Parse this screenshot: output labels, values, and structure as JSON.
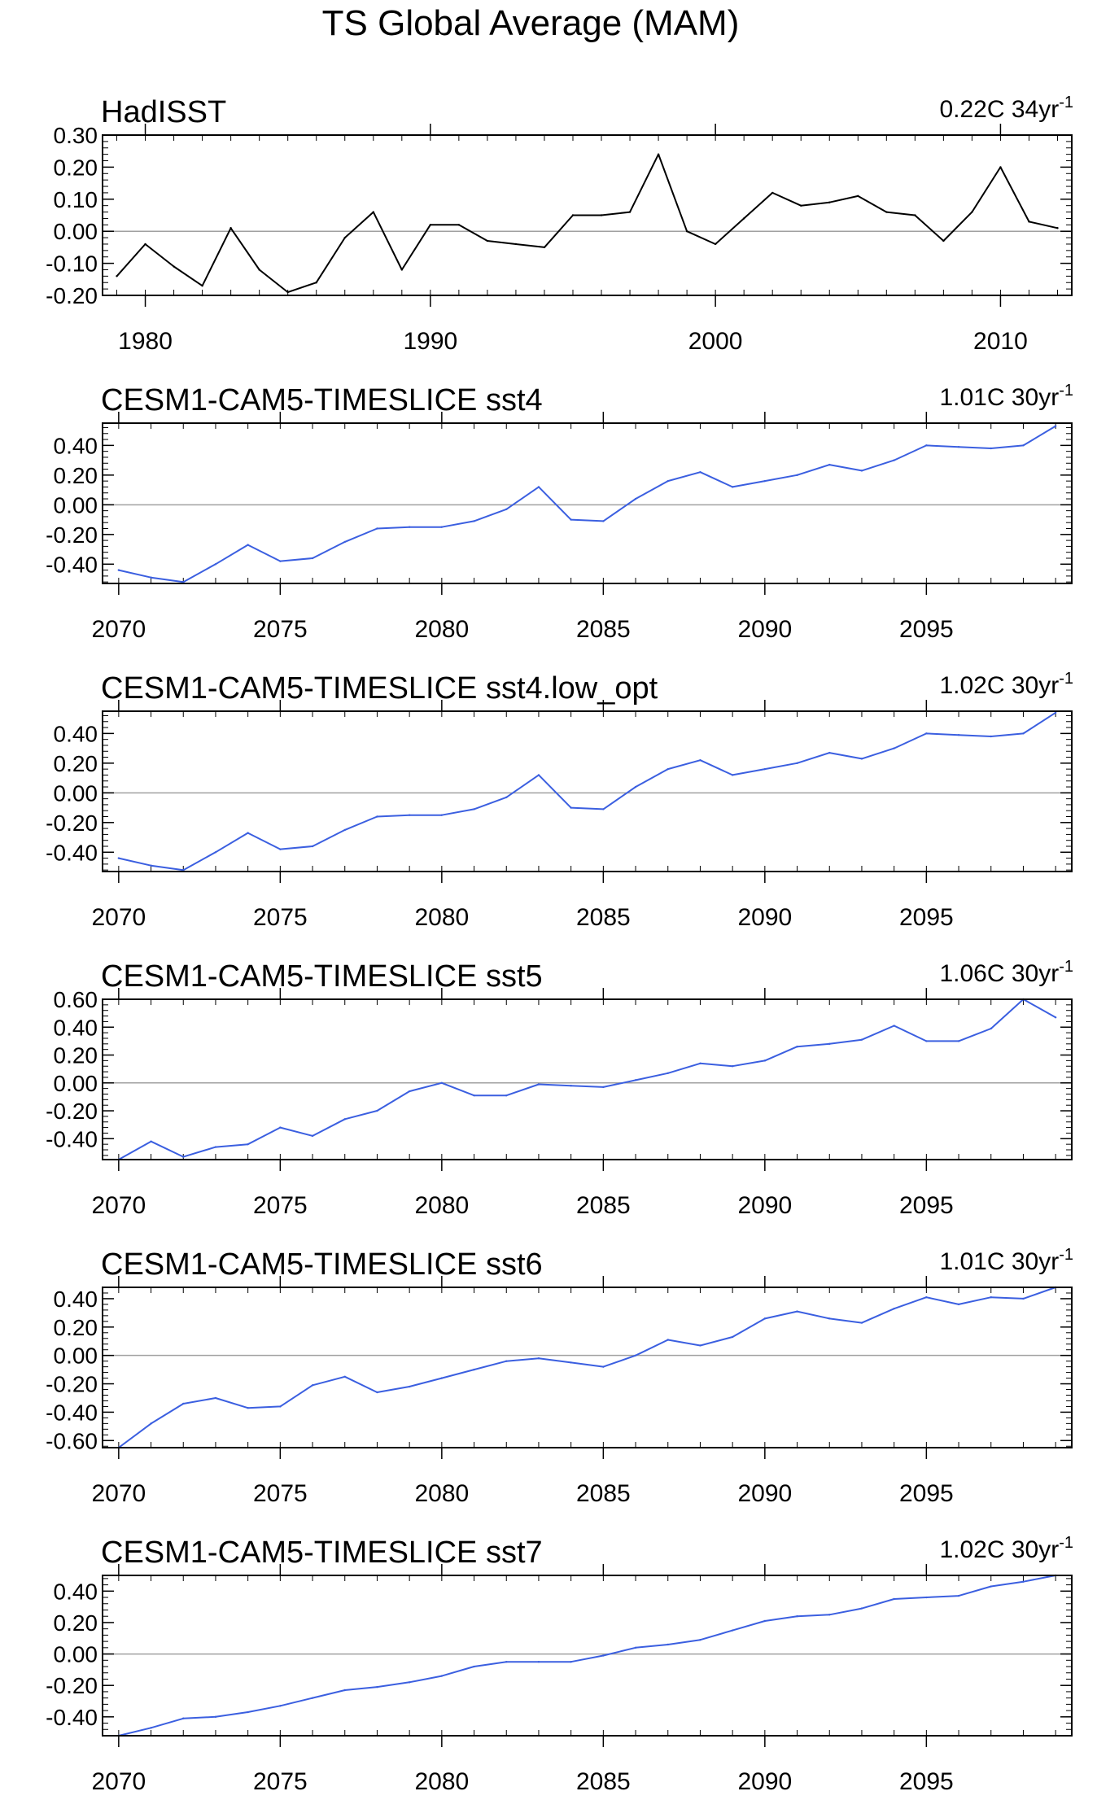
{
  "figure_title": "TS Global Average (MAM)",
  "chart_data": [
    {
      "type": "line",
      "title": "HadISST",
      "annotation": {
        "value": "0.22C 34yr",
        "sup": "-1"
      },
      "line_color": "#000000",
      "xlabel": "",
      "ylabel": "",
      "xlim": [
        1978.5,
        2012.5
      ],
      "ylim": [
        -0.2,
        0.3
      ],
      "yticks": [
        -0.2,
        -0.1,
        0.0,
        0.1,
        0.2,
        0.3
      ],
      "ytick_labels": [
        "-0.20",
        "-0.10",
        "0.00",
        "0.10",
        "0.20",
        "0.30"
      ],
      "xticks": [
        1980,
        1990,
        2000,
        2010
      ],
      "xtick_labels": [
        "1980",
        "1990",
        "2000",
        "2010"
      ],
      "zero_line": true,
      "x": [
        1979,
        1980,
        1981,
        1982,
        1983,
        1984,
        1985,
        1986,
        1987,
        1988,
        1989,
        1990,
        1991,
        1992,
        1993,
        1994,
        1995,
        1996,
        1997,
        1998,
        1999,
        2000,
        2001,
        2002,
        2003,
        2004,
        2005,
        2006,
        2007,
        2008,
        2009,
        2010,
        2011,
        2012
      ],
      "y": [
        -0.14,
        -0.04,
        -0.11,
        -0.17,
        0.01,
        -0.12,
        -0.19,
        -0.16,
        -0.02,
        0.06,
        -0.12,
        0.02,
        0.02,
        -0.03,
        -0.04,
        -0.05,
        0.05,
        0.05,
        0.06,
        0.24,
        0.0,
        -0.04,
        0.04,
        0.12,
        0.08,
        0.09,
        0.11,
        0.06,
        0.05,
        -0.03,
        0.06,
        0.2,
        0.03,
        0.01
      ]
    },
    {
      "type": "line",
      "title": "CESM1-CAM5-TIMESLICE sst4",
      "annotation": {
        "value": "1.01C 30yr",
        "sup": "-1"
      },
      "line_color": "#3b5fe0",
      "xlabel": "",
      "ylabel": "",
      "xlim": [
        2069.5,
        2099.5
      ],
      "ylim": [
        -0.53,
        0.55
      ],
      "yticks": [
        -0.4,
        -0.2,
        0.0,
        0.2,
        0.4
      ],
      "ytick_labels": [
        "-0.40",
        "-0.20",
        "0.00",
        "0.20",
        "0.40"
      ],
      "xticks": [
        2070,
        2075,
        2080,
        2085,
        2090,
        2095
      ],
      "xtick_labels": [
        "2070",
        "2075",
        "2080",
        "2085",
        "2090",
        "2095"
      ],
      "zero_line": true,
      "x": [
        2070,
        2071,
        2072,
        2073,
        2074,
        2075,
        2076,
        2077,
        2078,
        2079,
        2080,
        2081,
        2082,
        2083,
        2084,
        2085,
        2086,
        2087,
        2088,
        2089,
        2090,
        2091,
        2092,
        2093,
        2094,
        2095,
        2096,
        2097,
        2098,
        2099
      ],
      "y": [
        -0.44,
        -0.49,
        -0.52,
        -0.4,
        -0.27,
        -0.38,
        -0.36,
        -0.25,
        -0.16,
        -0.15,
        -0.15,
        -0.11,
        -0.03,
        0.12,
        -0.1,
        -0.11,
        0.04,
        0.16,
        0.22,
        0.12,
        0.16,
        0.2,
        0.27,
        0.23,
        0.3,
        0.4,
        0.39,
        0.38,
        0.4,
        0.53
      ]
    },
    {
      "type": "line",
      "title": "CESM1-CAM5-TIMESLICE sst4.low_opt",
      "annotation": {
        "value": "1.02C 30yr",
        "sup": "-1"
      },
      "line_color": "#3b5fe0",
      "xlabel": "",
      "ylabel": "",
      "xlim": [
        2069.5,
        2099.5
      ],
      "ylim": [
        -0.53,
        0.55
      ],
      "yticks": [
        -0.4,
        -0.2,
        0.0,
        0.2,
        0.4
      ],
      "ytick_labels": [
        "-0.40",
        "-0.20",
        "0.00",
        "0.20",
        "0.40"
      ],
      "xticks": [
        2070,
        2075,
        2080,
        2085,
        2090,
        2095
      ],
      "xtick_labels": [
        "2070",
        "2075",
        "2080",
        "2085",
        "2090",
        "2095"
      ],
      "zero_line": true,
      "x": [
        2070,
        2071,
        2072,
        2073,
        2074,
        2075,
        2076,
        2077,
        2078,
        2079,
        2080,
        2081,
        2082,
        2083,
        2084,
        2085,
        2086,
        2087,
        2088,
        2089,
        2090,
        2091,
        2092,
        2093,
        2094,
        2095,
        2096,
        2097,
        2098,
        2099
      ],
      "y": [
        -0.44,
        -0.49,
        -0.52,
        -0.4,
        -0.27,
        -0.38,
        -0.36,
        -0.25,
        -0.16,
        -0.15,
        -0.15,
        -0.11,
        -0.03,
        0.12,
        -0.1,
        -0.11,
        0.04,
        0.16,
        0.22,
        0.12,
        0.16,
        0.2,
        0.27,
        0.23,
        0.3,
        0.4,
        0.39,
        0.38,
        0.4,
        0.54
      ]
    },
    {
      "type": "line",
      "title": "CESM1-CAM5-TIMESLICE sst5",
      "annotation": {
        "value": "1.06C 30yr",
        "sup": "-1"
      },
      "line_color": "#3b5fe0",
      "xlabel": "",
      "ylabel": "",
      "xlim": [
        2069.5,
        2099.5
      ],
      "ylim": [
        -0.55,
        0.6
      ],
      "yticks": [
        -0.4,
        -0.2,
        0.0,
        0.2,
        0.4,
        0.6
      ],
      "ytick_labels": [
        "-0.40",
        "-0.20",
        "0.00",
        "0.20",
        "0.40",
        "0.60"
      ],
      "xticks": [
        2070,
        2075,
        2080,
        2085,
        2090,
        2095
      ],
      "xtick_labels": [
        "2070",
        "2075",
        "2080",
        "2085",
        "2090",
        "2095"
      ],
      "zero_line": true,
      "x": [
        2070,
        2071,
        2072,
        2073,
        2074,
        2075,
        2076,
        2077,
        2078,
        2079,
        2080,
        2081,
        2082,
        2083,
        2084,
        2085,
        2086,
        2087,
        2088,
        2089,
        2090,
        2091,
        2092,
        2093,
        2094,
        2095,
        2096,
        2097,
        2098,
        2099
      ],
      "y": [
        -0.55,
        -0.42,
        -0.53,
        -0.46,
        -0.44,
        -0.32,
        -0.38,
        -0.26,
        -0.2,
        -0.06,
        0.0,
        -0.09,
        -0.09,
        -0.01,
        -0.02,
        -0.03,
        0.02,
        0.07,
        0.14,
        0.12,
        0.16,
        0.26,
        0.28,
        0.31,
        0.41,
        0.3,
        0.3,
        0.39,
        0.6,
        0.47
      ]
    },
    {
      "type": "line",
      "title": "CESM1-CAM5-TIMESLICE sst6",
      "annotation": {
        "value": "1.01C 30yr",
        "sup": "-1"
      },
      "line_color": "#3b5fe0",
      "xlabel": "",
      "ylabel": "",
      "xlim": [
        2069.5,
        2099.5
      ],
      "ylim": [
        -0.65,
        0.48
      ],
      "yticks": [
        -0.6,
        -0.4,
        -0.2,
        0.0,
        0.2,
        0.4
      ],
      "ytick_labels": [
        "-0.60",
        "-0.40",
        "-0.20",
        "0.00",
        "0.20",
        "0.40"
      ],
      "xticks": [
        2070,
        2075,
        2080,
        2085,
        2090,
        2095
      ],
      "xtick_labels": [
        "2070",
        "2075",
        "2080",
        "2085",
        "2090",
        "2095"
      ],
      "zero_line": true,
      "x": [
        2070,
        2071,
        2072,
        2073,
        2074,
        2075,
        2076,
        2077,
        2078,
        2079,
        2080,
        2081,
        2082,
        2083,
        2084,
        2085,
        2086,
        2087,
        2088,
        2089,
        2090,
        2091,
        2092,
        2093,
        2094,
        2095,
        2096,
        2097,
        2098,
        2099
      ],
      "y": [
        -0.65,
        -0.48,
        -0.34,
        -0.3,
        -0.37,
        -0.36,
        -0.21,
        -0.15,
        -0.26,
        -0.22,
        -0.16,
        -0.1,
        -0.04,
        -0.02,
        -0.05,
        -0.08,
        0.0,
        0.11,
        0.07,
        0.13,
        0.26,
        0.31,
        0.26,
        0.23,
        0.33,
        0.41,
        0.36,
        0.41,
        0.4,
        0.48
      ]
    },
    {
      "type": "line",
      "title": "CESM1-CAM5-TIMESLICE sst7",
      "annotation": {
        "value": "1.02C 30yr",
        "sup": "-1"
      },
      "line_color": "#3b5fe0",
      "xlabel": "",
      "ylabel": "",
      "xlim": [
        2069.5,
        2099.5
      ],
      "ylim": [
        -0.52,
        0.5
      ],
      "yticks": [
        -0.4,
        -0.2,
        0.0,
        0.2,
        0.4
      ],
      "ytick_labels": [
        "-0.40",
        "-0.20",
        "0.00",
        "0.20",
        "0.40"
      ],
      "xticks": [
        2070,
        2075,
        2080,
        2085,
        2090,
        2095
      ],
      "xtick_labels": [
        "2070",
        "2075",
        "2080",
        "2085",
        "2090",
        "2095"
      ],
      "zero_line": true,
      "x": [
        2070,
        2071,
        2072,
        2073,
        2074,
        2075,
        2076,
        2077,
        2078,
        2079,
        2080,
        2081,
        2082,
        2083,
        2084,
        2085,
        2086,
        2087,
        2088,
        2089,
        2090,
        2091,
        2092,
        2093,
        2094,
        2095,
        2096,
        2097,
        2098,
        2099
      ],
      "y": [
        -0.52,
        -0.47,
        -0.41,
        -0.4,
        -0.37,
        -0.33,
        -0.28,
        -0.23,
        -0.21,
        -0.18,
        -0.14,
        -0.08,
        -0.05,
        -0.05,
        -0.05,
        -0.01,
        0.04,
        0.06,
        0.09,
        0.15,
        0.21,
        0.24,
        0.25,
        0.29,
        0.35,
        0.36,
        0.37,
        0.43,
        0.46,
        0.5
      ]
    }
  ]
}
